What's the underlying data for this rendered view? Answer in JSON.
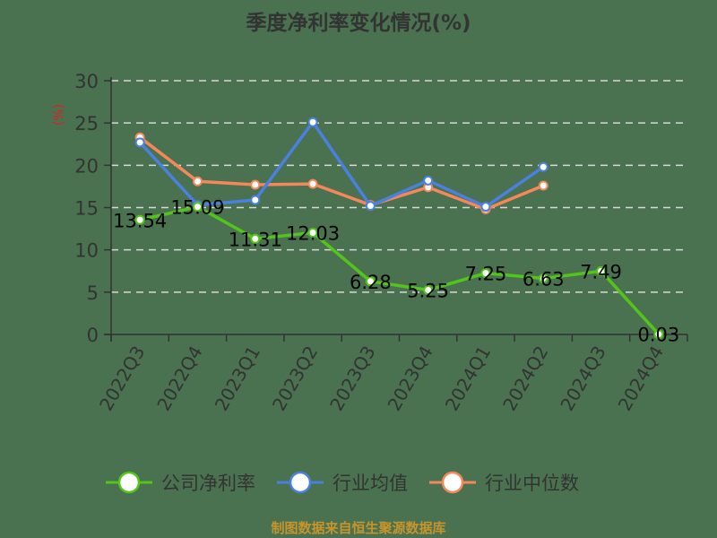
{
  "title": "季度净利率变化情况(%)",
  "source": "制图数据来自恒生聚源数据库",
  "chart_data": {
    "type": "line",
    "title": "季度净利率变化情况(%)",
    "xlabel": "",
    "ylabel": "(%)",
    "ylim": [
      0,
      30
    ],
    "yticks": [
      0,
      5,
      10,
      15,
      20,
      25,
      30
    ],
    "grid": true,
    "legend_position": "bottom",
    "categories": [
      "2022Q3",
      "2022Q4",
      "2023Q1",
      "2023Q2",
      "2023Q3",
      "2023Q4",
      "2024Q1",
      "2024Q2",
      "2024Q3",
      "2024Q4"
    ],
    "series": [
      {
        "name": "公司净利率",
        "color": "#52c41a",
        "values": [
          13.54,
          15.09,
          11.31,
          12.03,
          6.28,
          5.25,
          7.25,
          6.63,
          7.49,
          0.03
        ],
        "labels": [
          "13.54",
          "15.09",
          "11.31",
          "12.03",
          "6.28",
          "5.25",
          "7.25",
          "6.63",
          "7.49",
          "0.03"
        ]
      },
      {
        "name": "行业均值",
        "color": "#4a80e0",
        "values": [
          22.7,
          15.3,
          15.9,
          25.1,
          15.2,
          18.2,
          15.1,
          19.8,
          null,
          null
        ]
      },
      {
        "name": "行业中位数",
        "color": "#f5875a",
        "values": [
          23.3,
          18.1,
          17.7,
          17.8,
          15.3,
          17.4,
          14.8,
          17.6,
          null,
          null
        ]
      }
    ]
  },
  "legend": [
    {
      "label": "公司净利率",
      "color": "#52c41a"
    },
    {
      "label": "行业均值",
      "color": "#4a80e0"
    },
    {
      "label": "行业中位数",
      "color": "#f5875a"
    }
  ]
}
